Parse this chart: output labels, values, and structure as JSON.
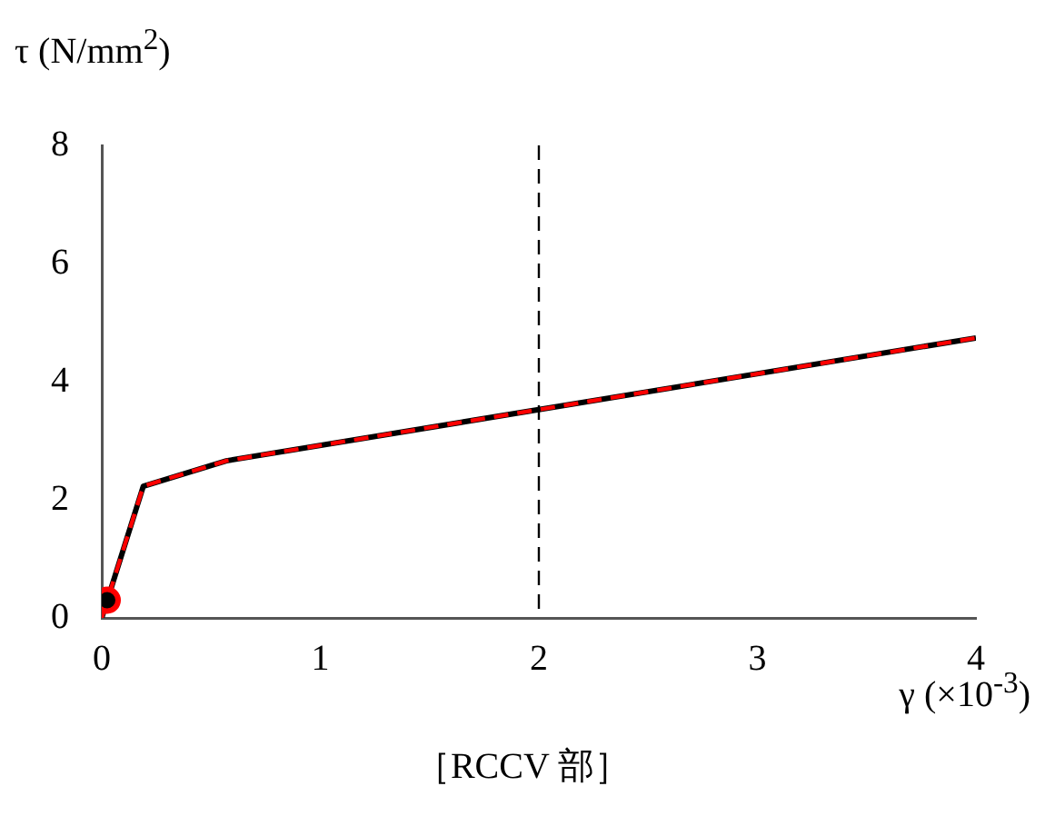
{
  "chart_data": {
    "type": "line",
    "xlabel": "γ (×10$^{-3}$)",
    "ylabel": "τ (N/mm$^{2}$)",
    "annotations": [
      "［RCCV 部］"
    ],
    "xlim": [
      0,
      4
    ],
    "xticks": [
      0,
      1,
      2,
      3,
      4
    ],
    "ylim": [
      0,
      8
    ],
    "yticks": [
      0,
      2,
      4,
      6,
      8
    ],
    "grid": false,
    "legend": false,
    "series": [
      {
        "color": "#000000",
        "line_style": "solid",
        "marker": "none",
        "x": [
          0,
          0.19,
          0.57,
          4
        ],
        "values": [
          0,
          2.23,
          2.66,
          4.74
        ]
      },
      {
        "color": "#ff0000",
        "line_style": "dashed",
        "marker": "none",
        "x": [
          0,
          0.19,
          0.57,
          4
        ],
        "values": [
          0,
          2.23,
          2.66,
          4.74
        ]
      },
      {
        "type": "scatter",
        "color": "#000000",
        "marker": "circle",
        "x": [
          0.025
        ],
        "values": [
          0.3
        ]
      }
    ],
    "ref_lines": [
      {
        "axis": "x",
        "value": 2,
        "color": "#000000",
        "line_style": "dashed"
      }
    ]
  }
}
